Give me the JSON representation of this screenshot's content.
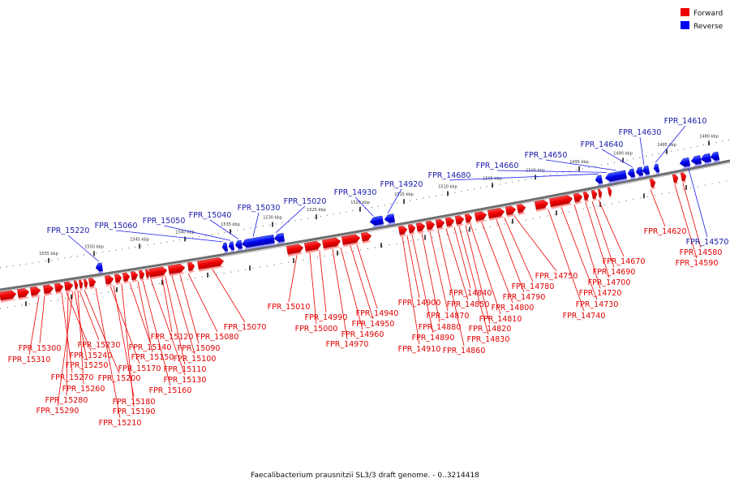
{
  "caption": "Faecalibacterium prausnitzii SL3/3 draft genome. - 0..3214418",
  "legend": [
    {
      "label": "Forward",
      "color": "#ee0000"
    },
    {
      "label": "Reverse",
      "color": "#0000ee"
    }
  ],
  "colors": {
    "forward": "#ee0000",
    "reverse": "#0000ee",
    "backbone": "#777777"
  },
  "kbp_marks": [
    "1555 kbp",
    "1550 kbp",
    "1545 kbp",
    "1540 kbp",
    "1535 kbp",
    "1530 kbp",
    "1525 kbp",
    "1520 kbp",
    "1515 kbp",
    "1510 kbp",
    "1505 kbp",
    "1500 kbp",
    "1495 kbp",
    "1490 kbp",
    "1485 kbp",
    "1480 kbp"
  ],
  "forward_labels": [
    "FPR_15300",
    "FPR_15310",
    "FPR_15230",
    "FPR_15240",
    "FPR_15250",
    "FPR_15270",
    "FPR_15260",
    "FPR_15280",
    "FPR_15290",
    "FPR_15200",
    "FPR_15170",
    "FPR_15180",
    "FPR_15190",
    "FPR_15210",
    "FPR_15140",
    "FPR_15150",
    "FPR_15160",
    "FPR_15120",
    "FPR_15130",
    "FPR_15110",
    "FPR_15100",
    "FPR_15090",
    "FPR_15080",
    "FPR_15070",
    "FPR_15010",
    "FPR_15000",
    "FPR_14990",
    "FPR_14970",
    "FPR_14960",
    "FPR_14950",
    "FPR_14940",
    "FPR_14910",
    "FPR_14900",
    "FPR_14890",
    "FPR_14880",
    "FPR_14870",
    "FPR_14860",
    "FPR_14850",
    "FPR_14840",
    "FPR_14830",
    "FPR_14820",
    "FPR_14810",
    "FPR_14800",
    "FPR_14790",
    "FPR_14780",
    "FPR_14750",
    "FPR_14740",
    "FPR_14730",
    "FPR_14720",
    "FPR_14700",
    "FPR_14690",
    "FPR_14670",
    "FPR_14620",
    "FPR_14590",
    "FPR_14580"
  ],
  "reverse_labels": [
    "FPR_15220",
    "FPR_15060",
    "FPR_15050",
    "FPR_15040",
    "FPR_15030",
    "FPR_15020",
    "FPR_14930",
    "FPR_14920",
    "FPR_14680",
    "FPR_14660",
    "FPR_14650",
    "FPR_14640",
    "FPR_14630",
    "FPR_14610",
    "FPR_14570"
  ]
}
